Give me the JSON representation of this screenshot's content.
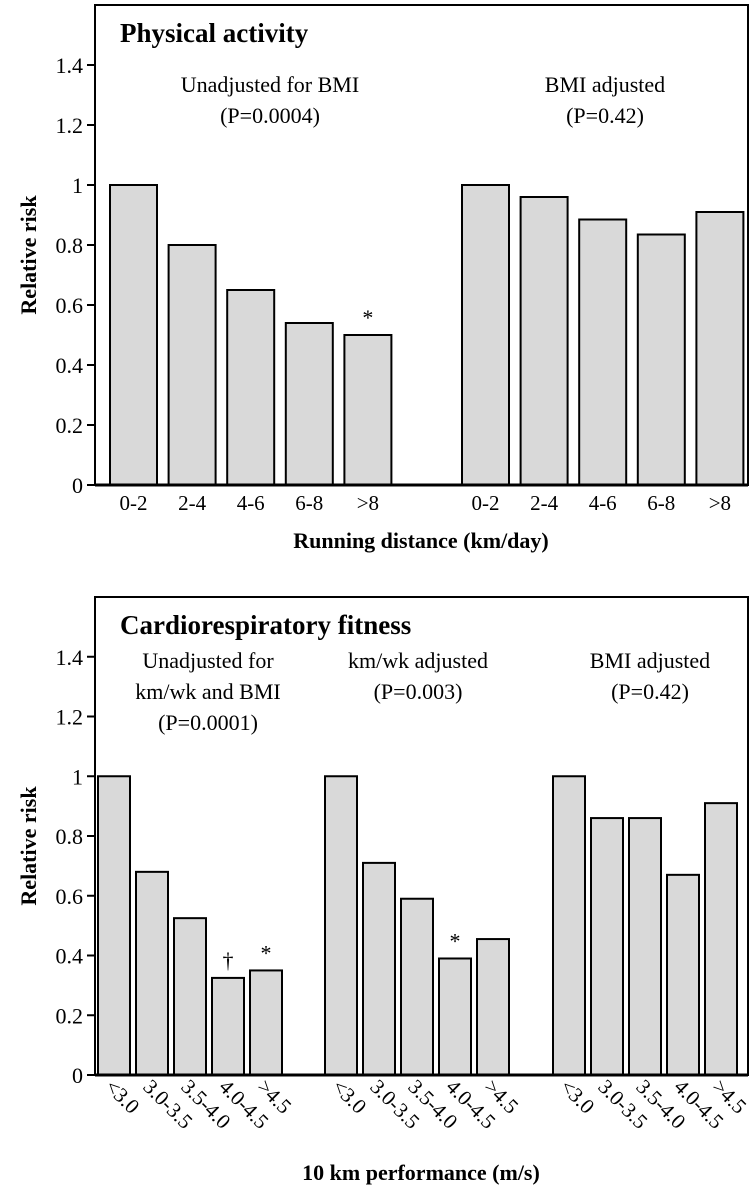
{
  "chart_data": [
    {
      "type": "bar",
      "title": "Physical activity",
      "y_label": "Relative risk",
      "x_label": "Running distance (km/day)",
      "categories": [
        "0-2",
        "2-4",
        "4-6",
        "6-8",
        ">8"
      ],
      "ylim": [
        0,
        1.6
      ],
      "yticks": [
        0,
        0.2,
        0.4,
        0.6,
        0.8,
        1,
        1.2,
        1.4
      ],
      "color": "#d9d9d9",
      "series": [
        {
          "label": [
            "Unadjusted for BMI",
            "(P=0.0004)"
          ],
          "values": [
            1,
            0.8,
            0.65,
            0.54,
            0.5
          ],
          "markers": [
            null,
            null,
            null,
            null,
            "*"
          ]
        },
        {
          "label": [
            "BMI adjusted",
            "(P=0.42)"
          ],
          "values": [
            1,
            0.96,
            0.885,
            0.835,
            0.91
          ],
          "markers": [
            null,
            null,
            null,
            null,
            null
          ]
        }
      ]
    },
    {
      "type": "bar",
      "title": "Cardiorespiratory fitness",
      "y_label": "Relative risk",
      "x_label": "10 km performance (m/s)",
      "categories": [
        "<3.0",
        "3.0-3.5",
        "3.5-4.0",
        "4.0-4.5",
        ">4.5"
      ],
      "ylim": [
        0,
        1.6
      ],
      "yticks": [
        0,
        0.2,
        0.4,
        0.6,
        0.8,
        1,
        1.2,
        1.4
      ],
      "color": "#d9d9d9",
      "series": [
        {
          "label": [
            "Unadjusted for",
            "km/wk and BMI",
            "(P=0.0001)"
          ],
          "values": [
            1,
            0.68,
            0.525,
            0.325,
            0.35
          ],
          "markers": [
            null,
            null,
            null,
            "†",
            "*"
          ]
        },
        {
          "label": [
            "km/wk adjusted",
            "(P=0.003)"
          ],
          "values": [
            1,
            0.71,
            0.59,
            0.39,
            0.455
          ],
          "markers": [
            null,
            null,
            null,
            "*",
            null
          ]
        },
        {
          "label": [
            "BMI adjusted",
            "(P=0.42)"
          ],
          "values": [
            1,
            0.86,
            0.86,
            0.67,
            0.91
          ],
          "markers": [
            null,
            null,
            null,
            null,
            null
          ]
        }
      ]
    }
  ]
}
